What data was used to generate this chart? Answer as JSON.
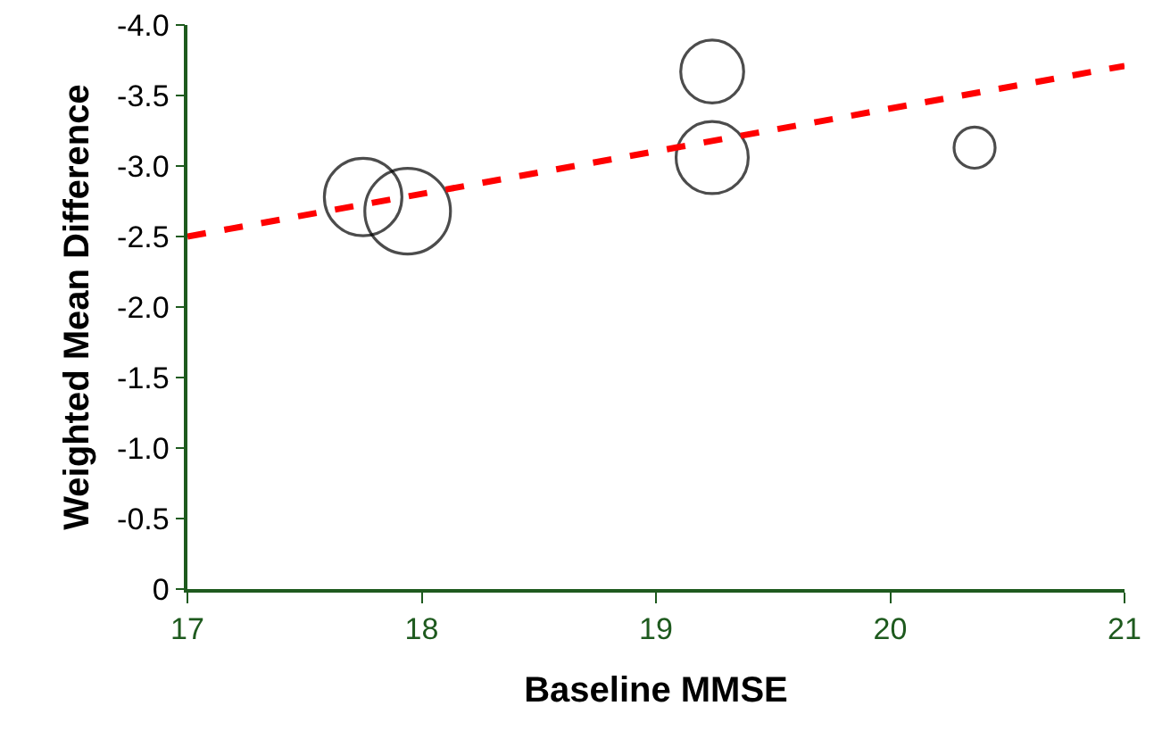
{
  "chart_data": {
    "type": "bubble",
    "xlabel": "Baseline MMSE",
    "ylabel": "Weighted Mean Difference",
    "xlim": [
      17,
      21
    ],
    "xticks": [
      17,
      18,
      19,
      20,
      21
    ],
    "ylim": [
      0,
      -4
    ],
    "yticks": [
      0,
      {
        "value": -0.5,
        "label": "-0.5"
      },
      {
        "value": -1,
        "label": "-1.0"
      },
      {
        "value": -1.5,
        "label": "-1.5"
      },
      {
        "value": -2,
        "label": "-2.0"
      },
      {
        "value": -2.5,
        "label": "-2.5"
      },
      {
        "value": -3,
        "label": "-3.0"
      },
      {
        "value": -3.5,
        "label": "-3.5"
      },
      {
        "value": -4,
        "label": "-4.0"
      }
    ],
    "grid": false,
    "series": [
      {
        "marker": "circle",
        "color": "#000000",
        "x": [
          17.75,
          17.94,
          19.24,
          19.24,
          20.36
        ],
        "values": [
          -2.78,
          -2.68,
          -3.67,
          -3.06,
          -3.13
        ],
        "sizes": [
          0.82,
          1,
          0.54,
          0.71,
          0.23
        ]
      },
      {
        "type": "line",
        "color": "#ff0000",
        "line_style": "dashed",
        "x": [
          17,
          21
        ],
        "values": [
          -2.5,
          -3.71
        ]
      }
    ]
  }
}
